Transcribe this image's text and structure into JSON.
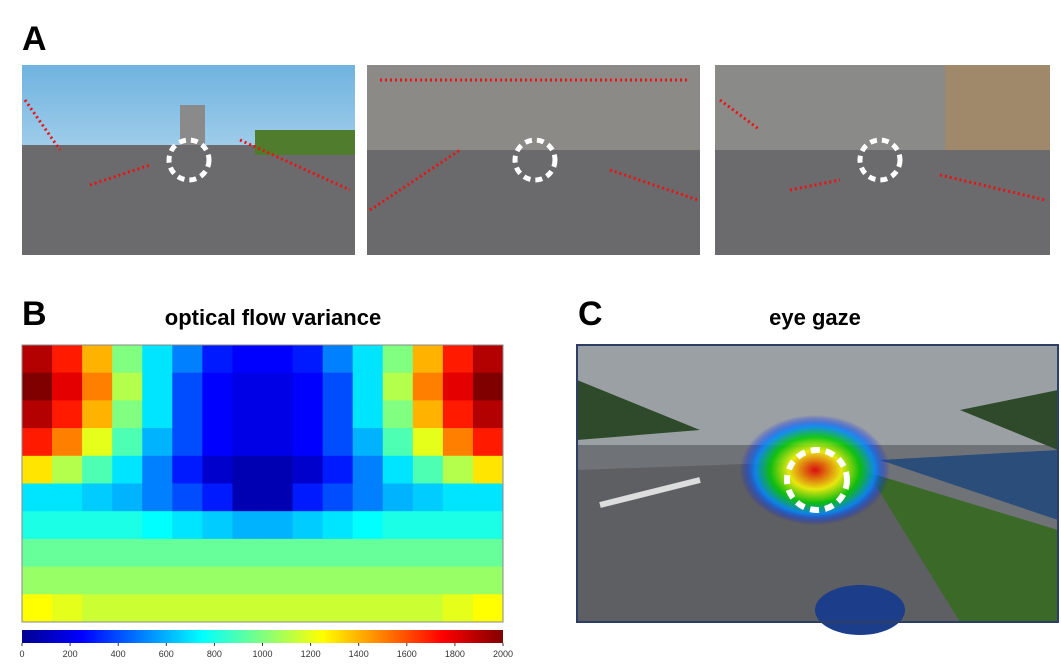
{
  "panels": {
    "A": {
      "label": "A"
    },
    "B": {
      "label": "B",
      "title": "optical flow variance",
      "heatmap": {
        "clim": [
          0,
          2000
        ],
        "colorbar_ticks": [
          0,
          200,
          400,
          600,
          800,
          1000,
          1200,
          1400,
          1600,
          1800,
          2000
        ],
        "values": [
          [
            1900,
            1700,
            1400,
            1000,
            700,
            500,
            300,
            250,
            250,
            300,
            500,
            700,
            1000,
            1400,
            1700,
            1900
          ],
          [
            2000,
            1800,
            1500,
            1100,
            700,
            400,
            250,
            200,
            200,
            250,
            400,
            700,
            1100,
            1500,
            1800,
            2000
          ],
          [
            1900,
            1700,
            1400,
            1000,
            700,
            400,
            250,
            200,
            200,
            250,
            400,
            700,
            1000,
            1400,
            1700,
            1900
          ],
          [
            1700,
            1500,
            1200,
            900,
            600,
            400,
            250,
            200,
            200,
            250,
            400,
            600,
            900,
            1200,
            1500,
            1700
          ],
          [
            1300,
            1100,
            900,
            700,
            500,
            300,
            150,
            100,
            100,
            150,
            300,
            500,
            700,
            900,
            1100,
            1300
          ],
          [
            700,
            700,
            650,
            600,
            500,
            400,
            300,
            100,
            100,
            300,
            400,
            500,
            600,
            650,
            700,
            700
          ],
          [
            800,
            800,
            800,
            800,
            750,
            700,
            650,
            600,
            600,
            650,
            700,
            750,
            800,
            800,
            800,
            800
          ],
          [
            950,
            950,
            950,
            950,
            950,
            950,
            950,
            950,
            950,
            950,
            950,
            950,
            950,
            950,
            950,
            950
          ],
          [
            1050,
            1050,
            1050,
            1050,
            1050,
            1050,
            1050,
            1050,
            1050,
            1050,
            1050,
            1050,
            1050,
            1050,
            1050,
            1050
          ],
          [
            1250,
            1200,
            1150,
            1150,
            1150,
            1150,
            1150,
            1150,
            1150,
            1150,
            1150,
            1150,
            1150,
            1150,
            1200,
            1250
          ]
        ]
      }
    },
    "C": {
      "label": "C",
      "title": "eye gaze"
    }
  }
}
